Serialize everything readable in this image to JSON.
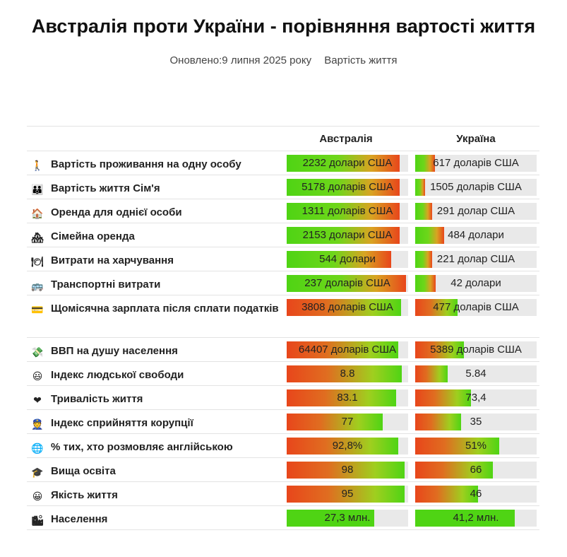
{
  "title": "Австралія проти України - порівняння вартості життя",
  "updated": "Оновлено:9 липня 2025 року",
  "category": "Вартість життя",
  "columns": {
    "country1": "Австралія",
    "country2": "Україна"
  },
  "colors": {
    "good": "#4fd414",
    "bad": "#e8461b",
    "track": "#e9e9e9"
  },
  "rows": [
    {
      "icon": "person-walking-icon",
      "label": "Вартість проживання на одну особу",
      "aus": "2232 долари США",
      "ukr": "617 доларів США",
      "aus_level": 0.93,
      "ukr_level": 0.16,
      "scale": "g2r"
    },
    {
      "icon": "family-icon",
      "label": "Вартість життя Сім'я",
      "aus": "5178 доларів США",
      "ukr": "1505 доларів США",
      "aus_level": 0.93,
      "ukr_level": 0.08,
      "scale": "g2r"
    },
    {
      "icon": "house-icon",
      "label": "Оренда для однієї особи",
      "aus": "1311 доларів США",
      "ukr": "291 долар США",
      "aus_level": 0.93,
      "ukr_level": 0.14,
      "scale": "g2r"
    },
    {
      "icon": "houses-icon",
      "label": "Сімейна оренда",
      "aus": "2153 долари США",
      "ukr": "484 долари",
      "aus_level": 0.93,
      "ukr_level": 0.24,
      "scale": "g2r"
    },
    {
      "icon": "plate-icon",
      "label": "Витрати на харчування",
      "aus": "544 долари",
      "ukr": "221 долар США",
      "aus_level": 0.86,
      "ukr_level": 0.14,
      "scale": "g2r"
    },
    {
      "icon": "bus-icon",
      "label": "Транспортні витрати",
      "aus": "237 доларів США",
      "ukr": "42 долари",
      "aus_level": 0.98,
      "ukr_level": 0.17,
      "scale": "g2r"
    },
    {
      "icon": "credit-card-icon",
      "label": "Щомісячна зарплата після сплати податків",
      "aus": "3808 доларів США",
      "ukr": "477 доларів США",
      "aus_level": 0.94,
      "ukr_level": 0.35,
      "scale": "r2g",
      "tall": true
    },
    {
      "icon": "money-icon",
      "label": "ВВП на душу населення",
      "aus": "64407 доларів США",
      "ukr": "5389 доларів США",
      "aus_level": 0.92,
      "ukr_level": 0.4,
      "scale": "r2g"
    },
    {
      "icon": "smile-face-icon",
      "label": "Індекс людської свободи",
      "aus": "8.8",
      "ukr": "5.84",
      "aus_level": 0.95,
      "ukr_level": 0.27,
      "scale": "r2g"
    },
    {
      "icon": "heart-icon",
      "label": "Тривалість життя",
      "aus": "83.1",
      "ukr": "73,4",
      "aus_level": 0.9,
      "ukr_level": 0.46,
      "scale": "r2g"
    },
    {
      "icon": "police-officer-icon",
      "label": "Індекс сприйняття корупції",
      "aus": "77",
      "ukr": "35",
      "aus_level": 0.79,
      "ukr_level": 0.38,
      "scale": "r2g"
    },
    {
      "icon": "globe-icon",
      "label": "% тих, хто розмовляє англійською",
      "aus": "92,8%",
      "ukr": "51%",
      "aus_level": 0.92,
      "ukr_level": 0.69,
      "scale": "r2g"
    },
    {
      "icon": "graduation-cap-icon",
      "label": "Вища освіта",
      "aus": "98",
      "ukr": "66",
      "aus_level": 0.97,
      "ukr_level": 0.64,
      "scale": "r2g"
    },
    {
      "icon": "grin-face-icon",
      "label": "Якість життя",
      "aus": "95",
      "ukr": "46",
      "aus_level": 0.97,
      "ukr_level": 0.52,
      "scale": "r2g"
    },
    {
      "icon": "cityscape-icon",
      "label": "Населення",
      "aus": "27,3 млн.",
      "ukr": "41,2 млн.",
      "aus_level": 0.72,
      "ukr_level": 0.82,
      "scale": "green"
    }
  ]
}
